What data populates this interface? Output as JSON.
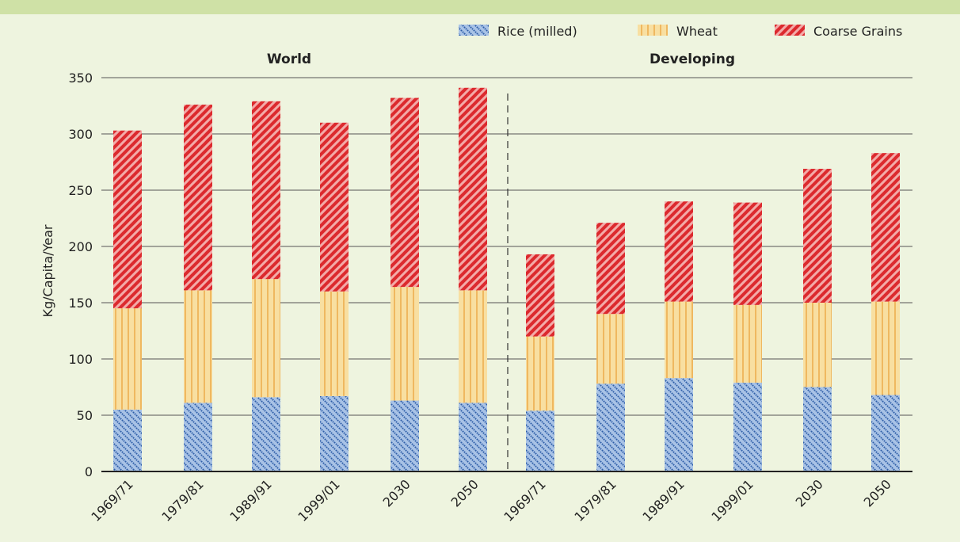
{
  "colors": {
    "background": "#eef4df",
    "top_bar": "#cfe1a6",
    "rice": "#a9c3e6",
    "rice_hatch": "#2e5ea8",
    "wheat": "#f8dfa1",
    "wheat_hatch": "#efb860",
    "coarse": "#f3aaa8",
    "coarse_hatch": "#dc2a2e"
  },
  "chart_data": {
    "type": "bar",
    "stacked": true,
    "ylabel": "Kg/Capita/Year",
    "ylim": [
      0,
      350
    ],
    "yticks": [
      0,
      50,
      100,
      150,
      200,
      250,
      300,
      350
    ],
    "grid": true,
    "legend_position": "top-right",
    "legend": [
      {
        "name": "Rice (milled)",
        "key": "rice",
        "pattern": "rice"
      },
      {
        "name": "Wheat",
        "key": "wheat",
        "pattern": "wheat"
      },
      {
        "name": "Coarse Grains",
        "key": "coarse",
        "pattern": "coarse"
      }
    ],
    "panels": [
      {
        "title": "World",
        "categories": [
          "1969/71",
          "1979/81",
          "1989/91",
          "1999/01",
          "2030",
          "2050"
        ],
        "series": [
          {
            "name": "Rice (milled)",
            "key": "rice",
            "values": [
              55,
              61,
              66,
              67,
              63,
              61
            ]
          },
          {
            "name": "Wheat",
            "key": "wheat",
            "values": [
              90,
              100,
              105,
              93,
              101,
              100
            ]
          },
          {
            "name": "Coarse Grains",
            "key": "coarse",
            "values": [
              158,
              165,
              158,
              150,
              168,
              180
            ]
          }
        ]
      },
      {
        "title": "Developing",
        "categories": [
          "1969/71",
          "1979/81",
          "1989/91",
          "1999/01",
          "2030",
          "2050"
        ],
        "series": [
          {
            "name": "Rice (milled)",
            "key": "rice",
            "values": [
              54,
              78,
              83,
              79,
              75,
              68
            ]
          },
          {
            "name": "Wheat",
            "key": "wheat",
            "values": [
              66,
              62,
              68,
              69,
              75,
              83
            ]
          },
          {
            "name": "Coarse Grains",
            "key": "coarse",
            "values": [
              73,
              81,
              89,
              91,
              119,
              132
            ]
          }
        ]
      }
    ]
  }
}
